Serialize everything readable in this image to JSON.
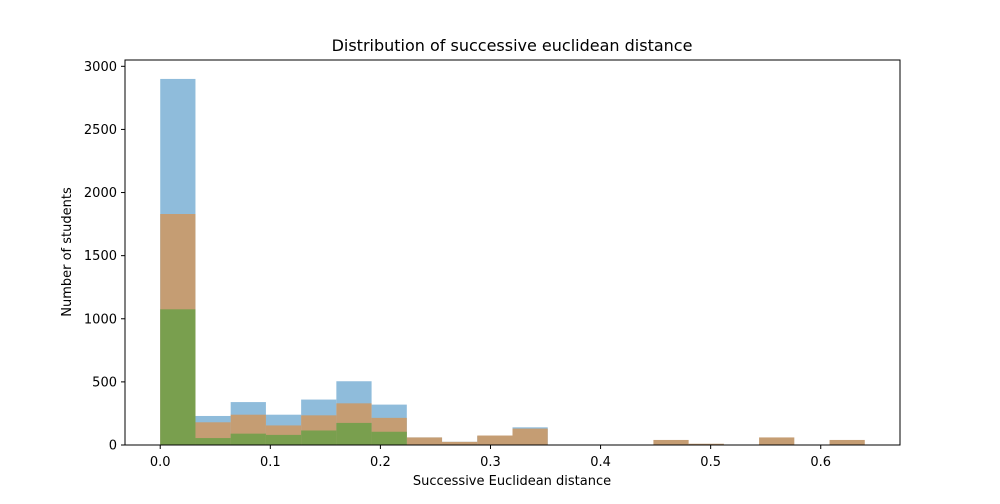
{
  "chart_data": {
    "type": "bar",
    "title": "Distribution of successive euclidean distance",
    "xlabel": "Successive Euclidean distance",
    "ylabel": "Number of students",
    "xlim": [
      -0.032,
      0.672
    ],
    "ylim": [
      0,
      3050
    ],
    "xticks": [
      0.0,
      0.1,
      0.2,
      0.3,
      0.4,
      0.5,
      0.6
    ],
    "xtick_labels": [
      "0.0",
      "0.1",
      "0.2",
      "0.3",
      "0.4",
      "0.5",
      "0.6"
    ],
    "yticks": [
      0,
      500,
      1000,
      1500,
      2000,
      2500,
      3000
    ],
    "ytick_labels": [
      "0",
      "500",
      "1000",
      "1500",
      "2000",
      "2500",
      "3000"
    ],
    "grid": false,
    "legend": false,
    "bin_edges": [
      0.0,
      0.032,
      0.064,
      0.096,
      0.128,
      0.16,
      0.192,
      0.224,
      0.256,
      0.288,
      0.32,
      0.352,
      0.384,
      0.416,
      0.448,
      0.48,
      0.512,
      0.544,
      0.576,
      0.608,
      0.64
    ],
    "series": [
      {
        "color": "#8fbcdb",
        "values": [
          2900,
          230,
          340,
          240,
          360,
          505,
          320,
          60,
          25,
          70,
          140,
          0,
          0,
          0,
          0,
          0,
          0,
          0,
          0,
          0
        ]
      },
      {
        "color": "#c59d73",
        "values": [
          1830,
          180,
          240,
          155,
          235,
          330,
          215,
          60,
          25,
          75,
          130,
          0,
          0,
          0,
          40,
          10,
          0,
          60,
          0,
          40
        ]
      },
      {
        "color": "#799f4e",
        "values": [
          1075,
          55,
          90,
          80,
          115,
          175,
          105,
          0,
          0,
          0,
          0,
          0,
          0,
          0,
          0,
          0,
          0,
          0,
          0,
          0
        ]
      }
    ]
  }
}
